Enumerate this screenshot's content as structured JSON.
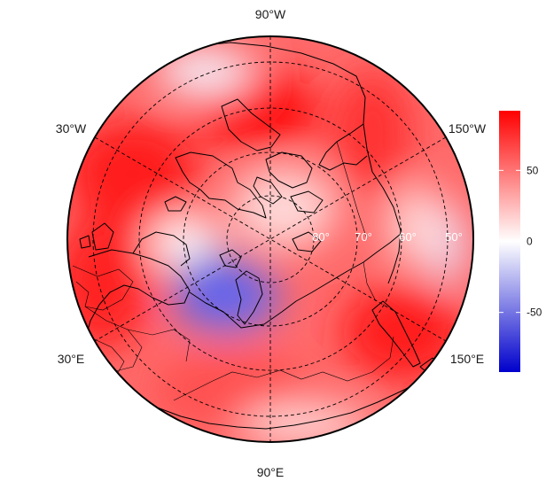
{
  "map": {
    "projection": "north-polar-stereographic",
    "longitude_labels": {
      "top": "90°W",
      "upper_left": "30°W",
      "upper_right": "150°W",
      "lower_left": "30°E",
      "lower_right": "150°E",
      "bottom": "90°E"
    },
    "latitude_labels": [
      "80°",
      "70°",
      "60°",
      "50°"
    ],
    "graticule_style": "dashed",
    "field": {
      "description_of_pattern": "positive anomalies over most of the domain, negative centre over northern Eurasia / Barents sector",
      "colors": {
        "low": "#0000cc",
        "zero": "#ffffff",
        "high": "#ff0000"
      }
    }
  },
  "colorbar": {
    "ticks": [
      {
        "value": 50,
        "label": "50"
      },
      {
        "value": 0,
        "label": "0"
      },
      {
        "value": -50,
        "label": "-50"
      }
    ],
    "range": [
      -92,
      92
    ],
    "colors": {
      "top": "#ff0000",
      "middle": "#ffffff",
      "bottom": "#0000cc"
    }
  }
}
